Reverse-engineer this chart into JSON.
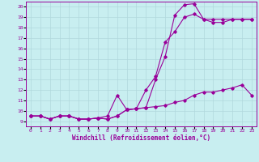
{
  "xlabel": "Windchill (Refroidissement éolien,°C)",
  "background_color": "#c8eef0",
  "line_color": "#990099",
  "grid_color": "#b0d8dc",
  "xlim": [
    -0.5,
    23.5
  ],
  "ylim": [
    8.5,
    20.5
  ],
  "xticks": [
    0,
    1,
    2,
    3,
    4,
    5,
    6,
    7,
    8,
    9,
    10,
    11,
    12,
    13,
    14,
    15,
    16,
    17,
    18,
    19,
    20,
    21,
    22,
    23
  ],
  "yticks": [
    9,
    10,
    11,
    12,
    13,
    14,
    15,
    16,
    17,
    18,
    19,
    20
  ],
  "series": [
    {
      "x": [
        0,
        1,
        2,
        3,
        4,
        5,
        6,
        7,
        8,
        9,
        10,
        11,
        12,
        13,
        14,
        15,
        16,
        17,
        18,
        19,
        20,
        21,
        22,
        23
      ],
      "y": [
        9.5,
        9.5,
        9.2,
        9.5,
        9.5,
        9.2,
        9.2,
        9.3,
        9.2,
        9.5,
        10.1,
        10.2,
        10.3,
        13.0,
        15.2,
        19.2,
        20.2,
        20.3,
        18.8,
        18.8,
        18.8,
        18.8,
        18.8,
        18.8
      ]
    },
    {
      "x": [
        0,
        1,
        2,
        3,
        4,
        5,
        6,
        7,
        8,
        9,
        10,
        11,
        12,
        13,
        14,
        15,
        16,
        17,
        18,
        19,
        20,
        21,
        22,
        23
      ],
      "y": [
        9.5,
        9.5,
        9.2,
        9.5,
        9.5,
        9.2,
        9.2,
        9.3,
        9.5,
        11.5,
        10.1,
        10.2,
        12.0,
        13.3,
        16.6,
        17.6,
        19.0,
        19.3,
        18.8,
        18.5,
        18.5,
        18.8,
        18.8,
        18.8
      ]
    },
    {
      "x": [
        0,
        1,
        2,
        3,
        4,
        5,
        6,
        7,
        8,
        9,
        10,
        11,
        12,
        13,
        14,
        15,
        16,
        17,
        18,
        19,
        20,
        21,
        22,
        23
      ],
      "y": [
        9.5,
        9.5,
        9.2,
        9.5,
        9.5,
        9.2,
        9.2,
        9.3,
        9.2,
        9.5,
        10.1,
        10.2,
        10.3,
        10.4,
        10.5,
        10.8,
        11.0,
        11.5,
        11.8,
        11.8,
        12.0,
        12.2,
        12.5,
        11.5
      ]
    }
  ]
}
